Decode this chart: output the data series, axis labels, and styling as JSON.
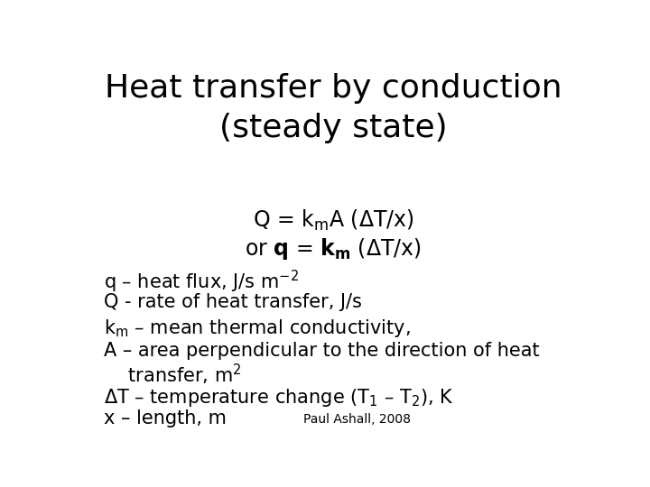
{
  "title_line1": "Heat transfer by conduction",
  "title_line2": "(steady state)",
  "title_fontsize": 26,
  "title_color": "#000000",
  "bg_color": "#ffffff",
  "eq_fontsize": 17,
  "bullet_fontsize": 15,
  "footnote": "Paul Ashall, 2008",
  "footnote_fontsize": 10
}
